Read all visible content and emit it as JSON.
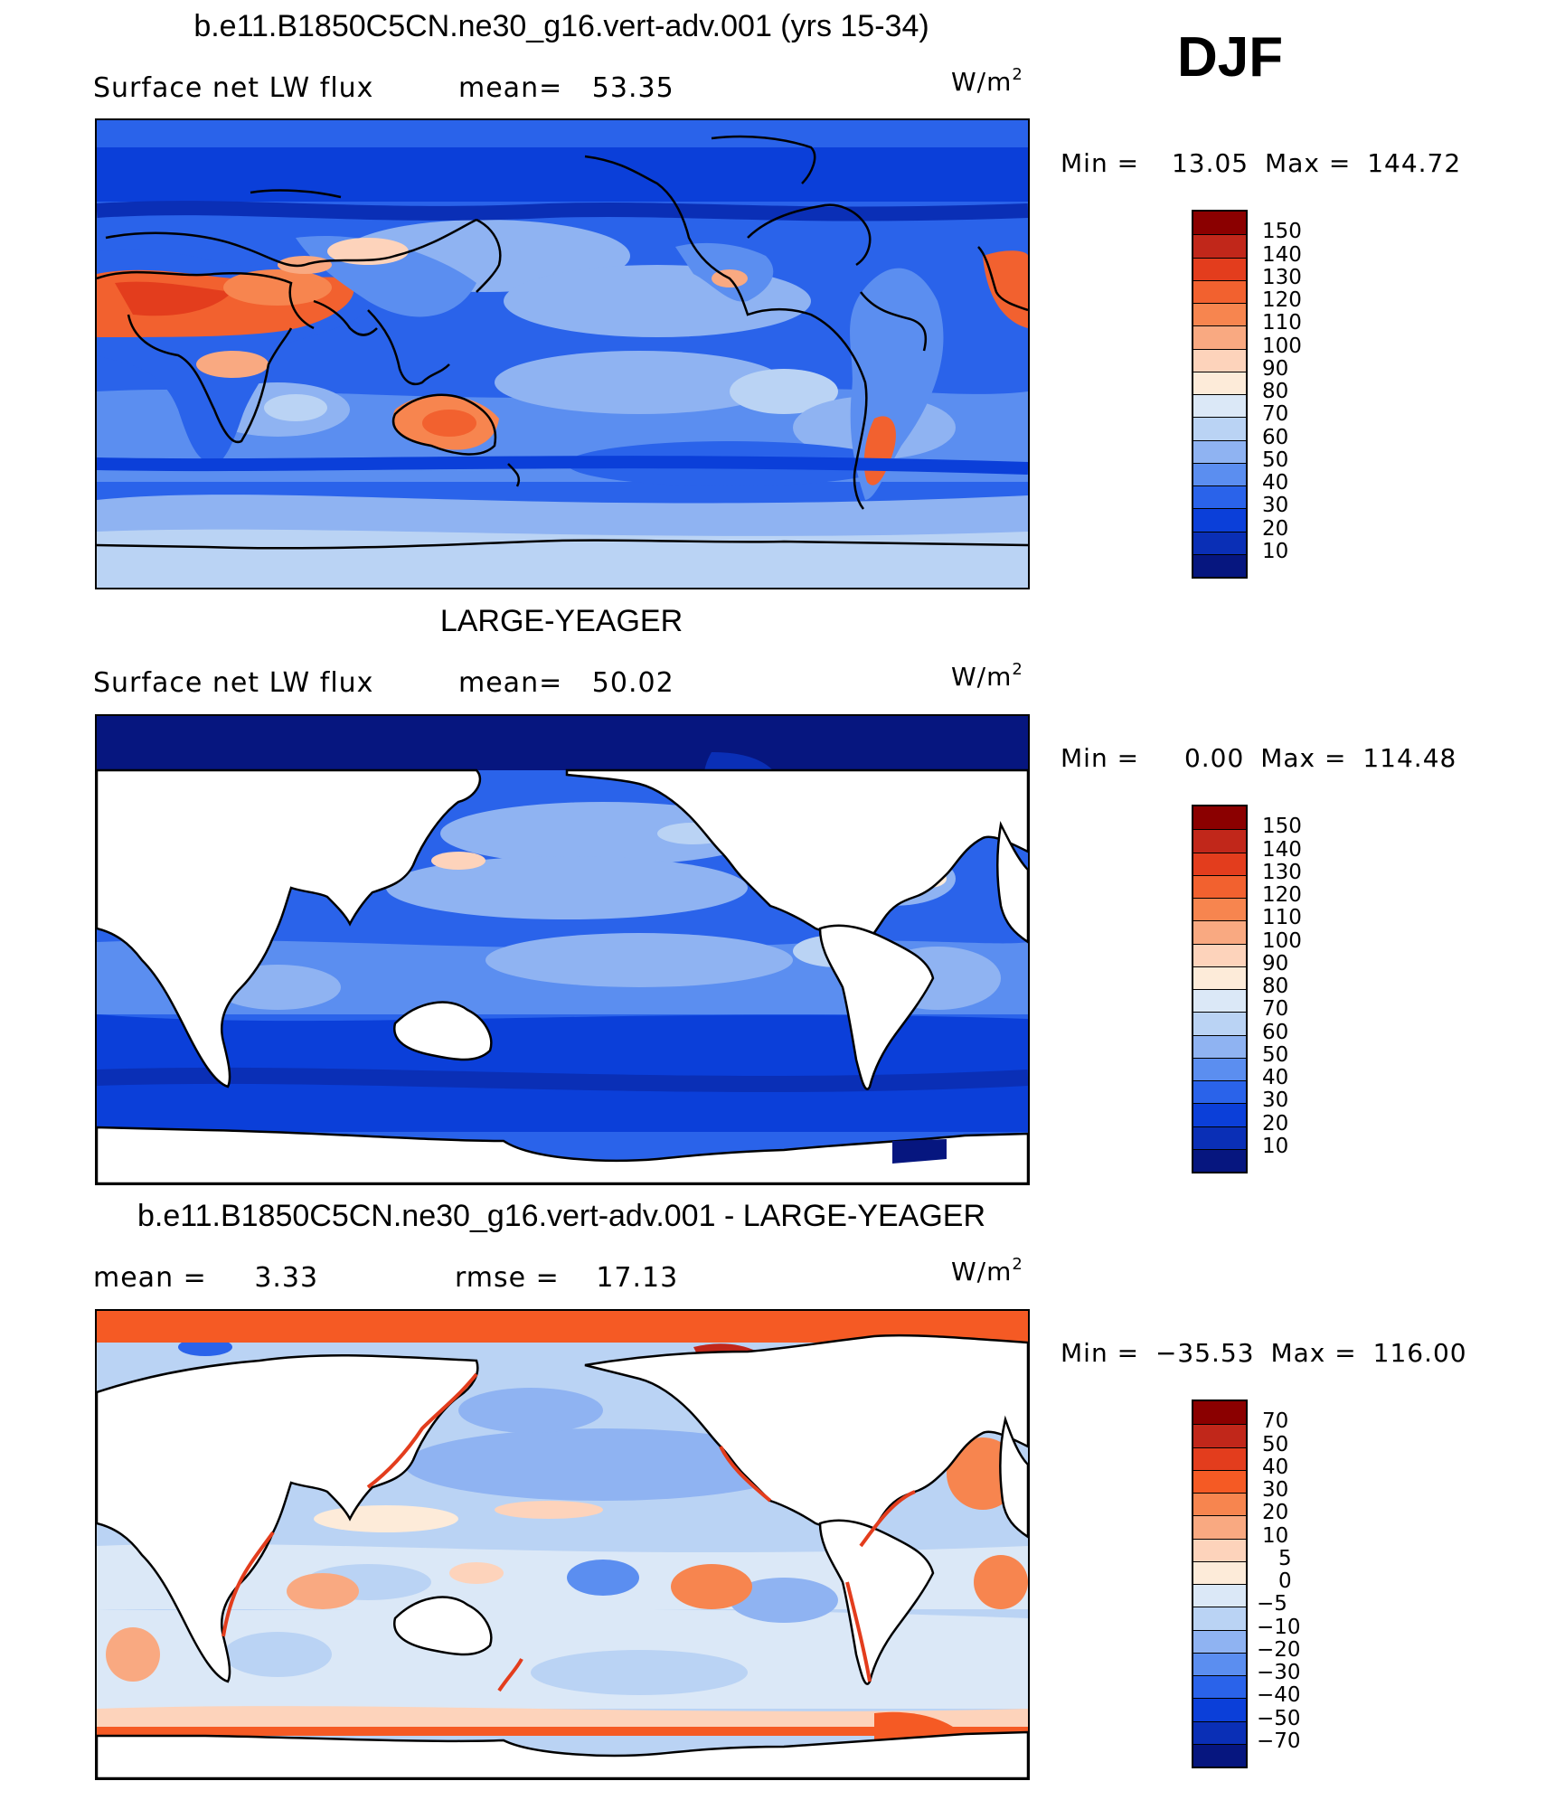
{
  "season": "DJF",
  "chart_data": [
    {
      "type": "heatmap",
      "title": "b.e11.B1850C5CN.ne30_g16.vert-adv.001 (yrs 15-34)",
      "variable": "Surface net LW flux",
      "stat_label": "mean=",
      "stat_value": "53.35",
      "units": "W/m",
      "units_sup": "2",
      "min_label": "Min =",
      "min_value": "13.05",
      "max_label": "Max =",
      "max_value": "144.72",
      "colorbar": {
        "levels": [
          "150",
          "140",
          "130",
          "120",
          "110",
          "100",
          "90",
          "80",
          "70",
          "60",
          "50",
          "40",
          "30",
          "20",
          "10"
        ],
        "colors": [
          "#8b0000",
          "#c1271a",
          "#e33d1d",
          "#f2612f",
          "#f7854f",
          "#f9a981",
          "#fdd3bb",
          "#fdebd9",
          "#dbe8f7",
          "#bad3f4",
          "#8fb3f2",
          "#5b8ef0",
          "#2a63ea",
          "#0b3fd9",
          "#0a2fb6",
          "#06167f"
        ]
      }
    },
    {
      "type": "heatmap",
      "title": "LARGE-YEAGER",
      "variable": "Surface net LW flux",
      "stat_label": "mean=",
      "stat_value": "50.02",
      "units": "W/m",
      "units_sup": "2",
      "min_label": "Min =",
      "min_value": "0.00",
      "max_label": "Max =",
      "max_value": "114.48",
      "colorbar": {
        "levels": [
          "150",
          "140",
          "130",
          "120",
          "110",
          "100",
          "90",
          "80",
          "70",
          "60",
          "50",
          "40",
          "30",
          "20",
          "10"
        ],
        "colors": [
          "#8b0000",
          "#c1271a",
          "#e33d1d",
          "#f2612f",
          "#f7854f",
          "#f9a981",
          "#fdd3bb",
          "#fdebd9",
          "#dbe8f7",
          "#bad3f4",
          "#8fb3f2",
          "#5b8ef0",
          "#2a63ea",
          "#0b3fd9",
          "#0a2fb6",
          "#06167f"
        ]
      }
    },
    {
      "type": "heatmap",
      "title": "b.e11.B1850C5CN.ne30_g16.vert-adv.001 - LARGE-YEAGER",
      "stat_label": "mean =",
      "stat_value": "3.33",
      "stat2_label": "rmse =",
      "stat2_value": "17.13",
      "units": "W/m",
      "units_sup": "2",
      "min_label": "Min =",
      "min_value": "−35.53",
      "max_label": "Max =",
      "max_value": "116.00",
      "colorbar": {
        "levels": [
          "70",
          "50",
          "40",
          "30",
          "20",
          "10",
          "5",
          "0",
          "−5",
          "−10",
          "−20",
          "−30",
          "−40",
          "−50",
          "−70"
        ],
        "colors": [
          "#8b0000",
          "#c1271a",
          "#e33d1d",
          "#f55a24",
          "#f7854f",
          "#f9a981",
          "#fdd3bb",
          "#fdebd9",
          "#dbe8f7",
          "#bad3f4",
          "#8fb3f2",
          "#5b8ef0",
          "#2a63ea",
          "#0b3fd9",
          "#0a2fb6",
          "#06167f"
        ]
      }
    }
  ]
}
